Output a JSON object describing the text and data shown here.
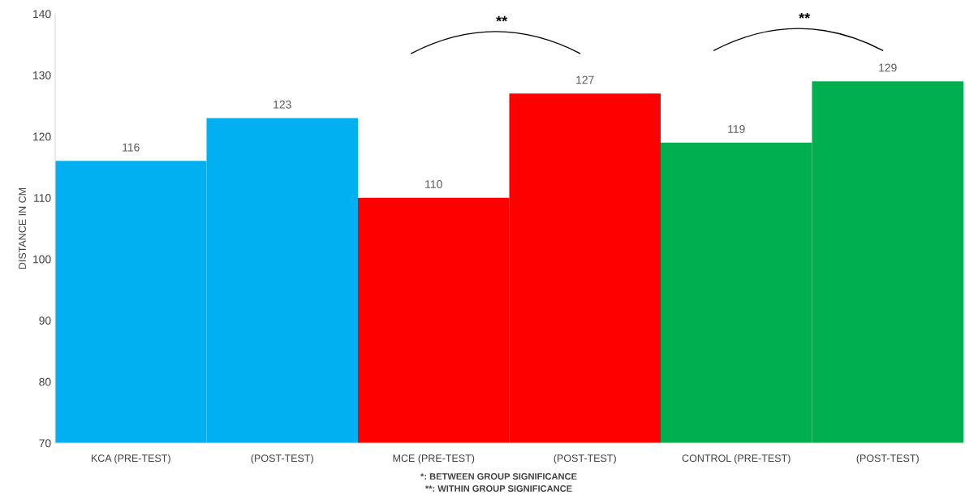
{
  "chart_data": {
    "type": "bar",
    "ylabel": "DISTANCE IN CM",
    "categories": [
      "KCA (PRE-TEST)",
      "(POST-TEST)",
      "MCE (PRE-TEST)",
      "(POST-TEST)",
      "CONTROL (PRE-TEST)",
      "(POST-TEST)"
    ],
    "values": [
      116,
      123,
      110,
      127,
      119,
      129
    ],
    "colors": [
      "#00b0f0",
      "#00b0f0",
      "#ff0000",
      "#ff0000",
      "#00b050",
      "#00b050"
    ],
    "ylim": [
      70,
      140
    ],
    "yticks": [
      70,
      80,
      90,
      100,
      110,
      120,
      130,
      140
    ],
    "grid": false,
    "data_labels": true,
    "annotations": [
      "**",
      "**",
      "*: BETWEEN GROUP SIGNIFICANCE",
      "**: WITHIN GROUP SIGNIFICANCE"
    ]
  }
}
